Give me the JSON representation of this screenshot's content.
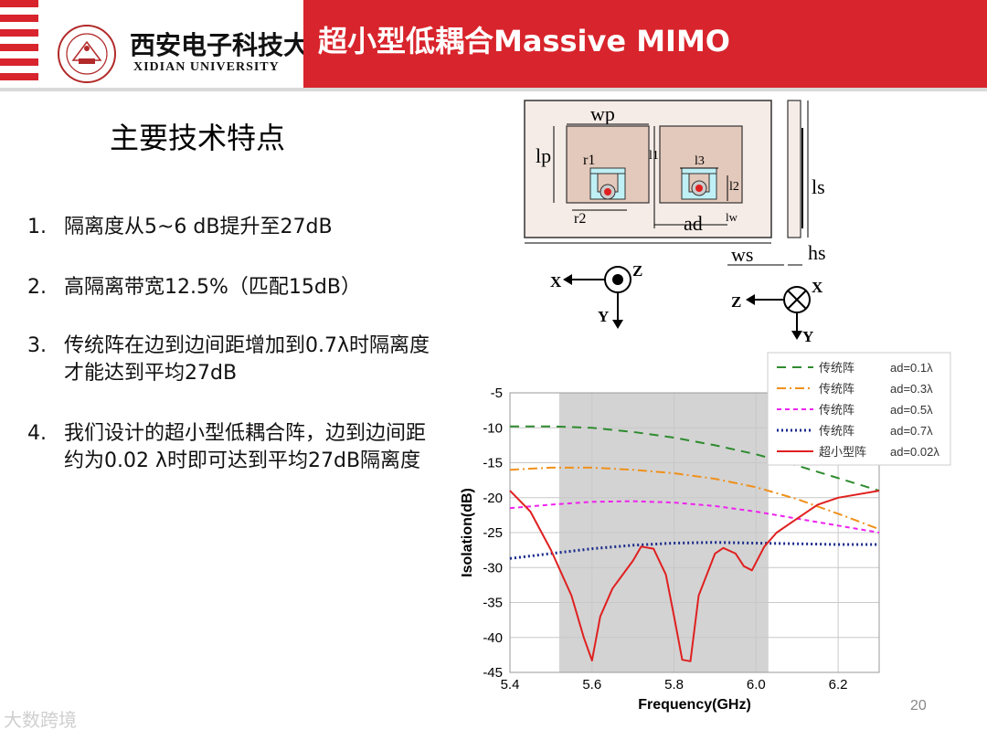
{
  "header": {
    "title": "超小型低耦合Massive MIMO",
    "university_cn": "西安电子科技大学",
    "university_en": "XIDIAN UNIVERSITY"
  },
  "colors": {
    "accent_red": "#d8242c",
    "shade": "#d3d3d3"
  },
  "main": {
    "heading": "主要技术特点",
    "items": [
      {
        "num": "1.",
        "text": "隔离度从5~6 dB提升至27dB"
      },
      {
        "num": "2.",
        "text": "高隔离带宽12.5%（匹配15dB）"
      },
      {
        "num": "3.",
        "text": "传统阵在边到边间距增加到0.7λ时隔离度才能达到平均27dB"
      },
      {
        "num": "4.",
        "text": "我们设计的超小型低耦合阵，边到边间距约为0.02 λ时即可达到平均27dB隔离度"
      }
    ]
  },
  "diagram": {
    "labels": {
      "wp": "wp",
      "lp": "lp",
      "r1": "r1",
      "l1": "l1",
      "l3": "l3",
      "l2": "l2",
      "r2": "r2",
      "ad": "ad",
      "lw": "lw",
      "ls": "ls",
      "ws": "ws",
      "hs": "hs"
    },
    "axes_left": {
      "x": "X",
      "y": "Y",
      "z": "Z"
    },
    "axes_right": {
      "x": "X",
      "y": "Y",
      "z": "Z"
    }
  },
  "chart_data": {
    "type": "line",
    "xlabel": "Frequency(GHz)",
    "ylabel": "Isolation(dB)",
    "xlim": [
      5.4,
      6.3
    ],
    "ylim": [
      -45,
      -5
    ],
    "xticks": [
      5.4,
      5.6,
      5.8,
      6.0,
      6.2
    ],
    "yticks": [
      -5,
      -10,
      -15,
      -20,
      -25,
      -30,
      -35,
      -40,
      -45
    ],
    "grid": true,
    "shaded_band": [
      5.52,
      6.03
    ],
    "legend_position": "top-right",
    "series": [
      {
        "name": "传统阵",
        "param": "ad=0.1λ",
        "color": "#2e8b2e",
        "dash": "10,7",
        "width": 2,
        "x": [
          5.4,
          5.5,
          5.6,
          5.7,
          5.8,
          5.9,
          6.0,
          6.1,
          6.2,
          6.3
        ],
        "y": [
          -9.8,
          -9.8,
          -10.0,
          -10.6,
          -11.4,
          -12.5,
          -13.8,
          -15.4,
          -17.2,
          -19.0
        ]
      },
      {
        "name": "传统阵",
        "param": "ad=0.3λ",
        "color": "#f0901a",
        "dash": "10,4,2,4",
        "width": 2,
        "x": [
          5.4,
          5.5,
          5.6,
          5.7,
          5.8,
          5.9,
          6.0,
          6.1,
          6.2,
          6.3
        ],
        "y": [
          -16.0,
          -15.7,
          -15.7,
          -16.0,
          -16.5,
          -17.3,
          -18.5,
          -20.2,
          -22.3,
          -24.5
        ]
      },
      {
        "name": "传统阵",
        "param": "ad=0.5λ",
        "color": "#ee22ee",
        "dash": "5,4",
        "width": 2,
        "x": [
          5.4,
          5.5,
          5.6,
          5.7,
          5.8,
          5.9,
          6.0,
          6.1,
          6.2,
          6.3
        ],
        "y": [
          -21.5,
          -21.0,
          -20.6,
          -20.5,
          -20.7,
          -21.2,
          -22.0,
          -23.0,
          -24.0,
          -25.0
        ]
      },
      {
        "name": "传统阵",
        "param": "ad=0.7λ",
        "color": "#1a2b8c",
        "dash": "2,3",
        "width": 3,
        "x": [
          5.4,
          5.5,
          5.6,
          5.7,
          5.8,
          5.9,
          6.0,
          6.1,
          6.2,
          6.3
        ],
        "y": [
          -28.7,
          -28.0,
          -27.3,
          -26.8,
          -26.5,
          -26.4,
          -26.5,
          -26.6,
          -26.7,
          -26.7
        ]
      },
      {
        "name": "超小型阵",
        "param": "ad=0.02λ",
        "color": "#e02020",
        "dash": "",
        "width": 2,
        "x": [
          5.4,
          5.45,
          5.5,
          5.55,
          5.58,
          5.6,
          5.62,
          5.65,
          5.7,
          5.72,
          5.75,
          5.78,
          5.8,
          5.82,
          5.84,
          5.86,
          5.9,
          5.92,
          5.95,
          5.97,
          5.99,
          6.02,
          6.05,
          6.1,
          6.15,
          6.2,
          6.3
        ],
        "y": [
          -19,
          -22,
          -27.5,
          -34,
          -40,
          -43.3,
          -37,
          -33,
          -29,
          -27,
          -27.3,
          -31,
          -37,
          -43.2,
          -43.4,
          -34,
          -28,
          -27.2,
          -28,
          -29.8,
          -30.4,
          -27,
          -25,
          -23,
          -21,
          -20,
          -19
        ]
      }
    ]
  },
  "footer": {
    "page_number": "20",
    "watermark": "大数跨境"
  }
}
